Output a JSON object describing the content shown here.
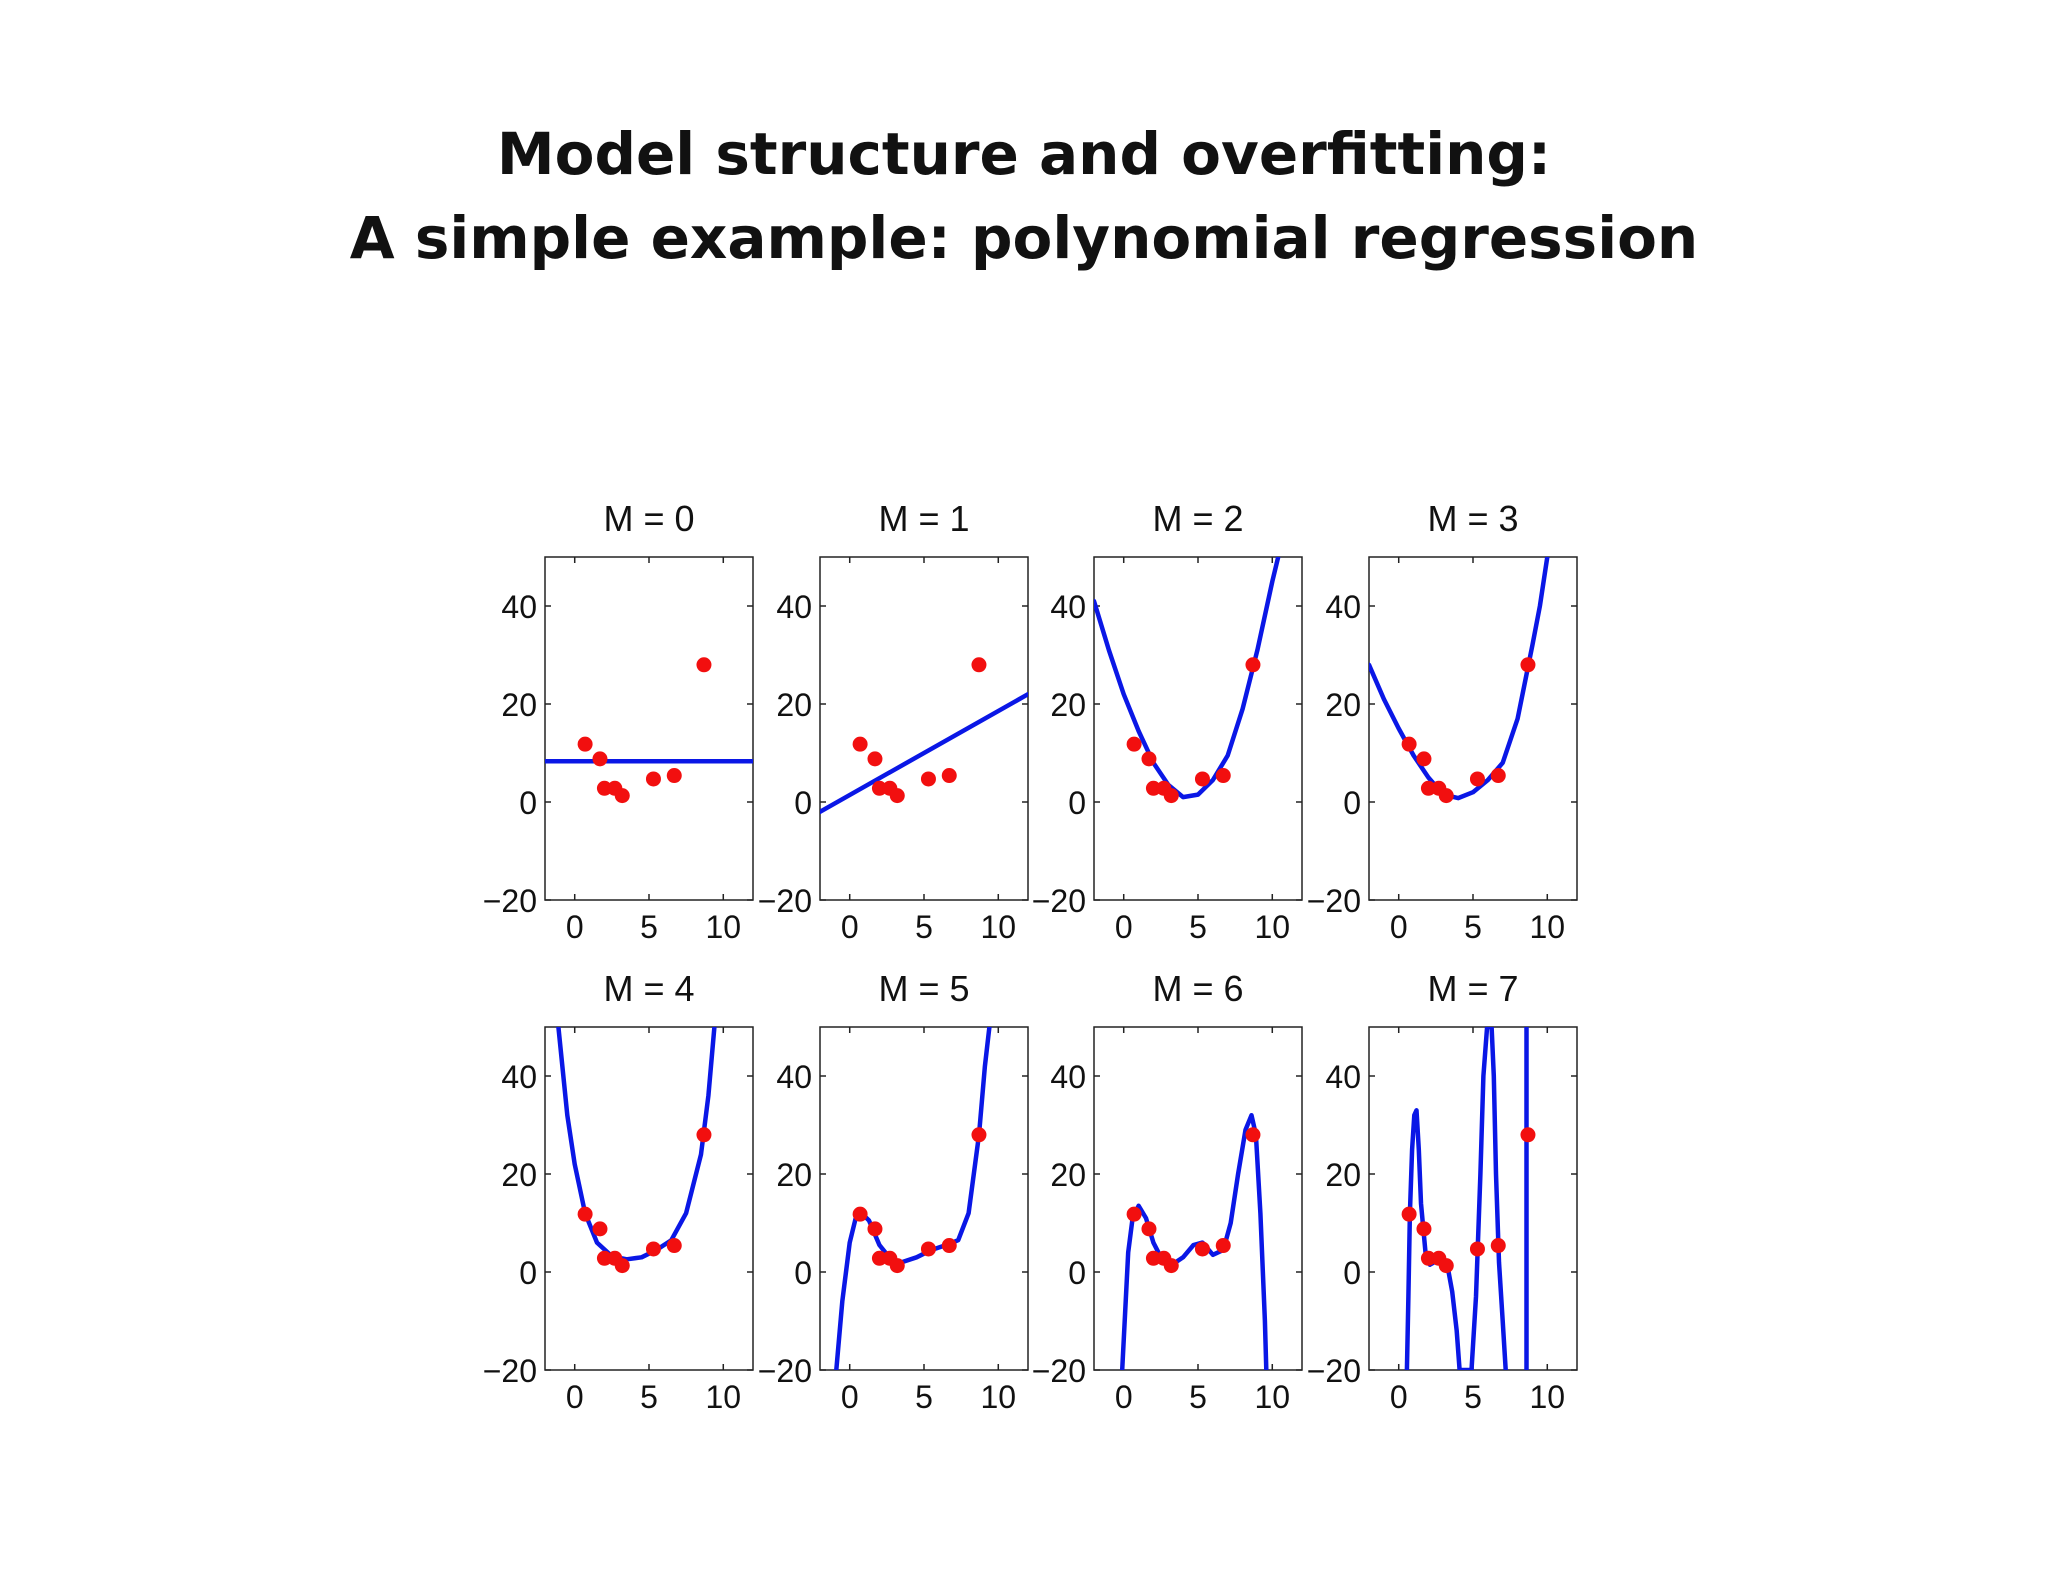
{
  "page": {
    "title_line1": "Model structure and overfitting:",
    "title_line2": "A simple example: polynomial regression"
  },
  "colors": {
    "fit_line": "#0a17e6",
    "data_points": "#f20f0f",
    "axes": "#222222"
  },
  "chart_data": [
    {
      "type": "line",
      "title": "M = 0",
      "xlim": [
        -2,
        12
      ],
      "ylim": [
        -20,
        50
      ],
      "xticks": [
        0,
        5,
        10
      ],
      "yticks": [
        -20,
        0,
        20,
        40
      ],
      "grid": false,
      "curve": {
        "x": [
          -2,
          12
        ],
        "y": [
          8.3,
          8.3
        ]
      },
      "points": {
        "x": [
          0.7,
          1.7,
          2.0,
          2.7,
          3.2,
          5.3,
          6.7,
          8.7
        ],
        "y": [
          11.8,
          8.8,
          2.8,
          2.8,
          1.3,
          4.7,
          5.4,
          28
        ]
      }
    },
    {
      "type": "line",
      "title": "M = 1",
      "xlim": [
        -2,
        12
      ],
      "ylim": [
        -20,
        50
      ],
      "xticks": [
        0,
        5,
        10
      ],
      "yticks": [
        -20,
        0,
        20,
        40
      ],
      "grid": false,
      "curve": {
        "x": [
          -2,
          12
        ],
        "y": [
          -2,
          22
        ]
      },
      "points": {
        "x": [
          0.7,
          1.7,
          2.0,
          2.7,
          3.2,
          5.3,
          6.7,
          8.7
        ],
        "y": [
          11.8,
          8.8,
          2.8,
          2.8,
          1.3,
          4.7,
          5.4,
          28
        ]
      }
    },
    {
      "type": "line",
      "title": "M = 2",
      "xlim": [
        -2,
        12
      ],
      "ylim": [
        -20,
        50
      ],
      "xticks": [
        0,
        5,
        10
      ],
      "yticks": [
        -20,
        0,
        20,
        40
      ],
      "grid": false,
      "curve": {
        "x": [
          -2,
          -1,
          0,
          1,
          2,
          3,
          4,
          5,
          6,
          7,
          8,
          9,
          10,
          10.4
        ],
        "y": [
          41,
          31,
          22,
          14.5,
          8,
          3.5,
          1,
          1.5,
          4.5,
          9.5,
          19,
          31,
          45,
          50
        ]
      },
      "points": {
        "x": [
          0.7,
          1.7,
          2.0,
          2.7,
          3.2,
          5.3,
          6.7,
          8.7
        ],
        "y": [
          11.8,
          8.8,
          2.8,
          2.8,
          1.3,
          4.7,
          5.4,
          28
        ]
      }
    },
    {
      "type": "line",
      "title": "M = 3",
      "xlim": [
        -2,
        12
      ],
      "ylim": [
        -20,
        50
      ],
      "xticks": [
        0,
        5,
        10
      ],
      "yticks": [
        -20,
        0,
        20,
        40
      ],
      "grid": false,
      "curve": {
        "x": [
          -2,
          -1,
          0,
          1,
          2,
          3,
          4,
          5,
          6,
          7,
          8,
          9,
          9.5,
          10
        ],
        "y": [
          28,
          21,
          15,
          9.5,
          5,
          1.5,
          0.8,
          2,
          4.5,
          8,
          17,
          32,
          40,
          50
        ]
      },
      "points": {
        "x": [
          0.7,
          1.7,
          2.0,
          2.7,
          3.2,
          5.3,
          6.7,
          8.7
        ],
        "y": [
          11.8,
          8.8,
          2.8,
          2.8,
          1.3,
          4.7,
          5.4,
          28
        ]
      }
    },
    {
      "type": "line",
      "title": "M = 4",
      "xlim": [
        -2,
        12
      ],
      "ylim": [
        -20,
        50
      ],
      "xticks": [
        0,
        5,
        10
      ],
      "yticks": [
        -20,
        0,
        20,
        40
      ],
      "grid": false,
      "curve": {
        "x": [
          -1.1,
          -0.5,
          0,
          0.7,
          1.5,
          2.5,
          3.5,
          4.5,
          5.5,
          6.5,
          7.5,
          8.5,
          9.0,
          9.4
        ],
        "y": [
          50,
          32,
          22,
          12,
          6,
          3.2,
          2.6,
          3,
          4.5,
          6.5,
          12,
          24,
          36,
          50
        ]
      },
      "points": {
        "x": [
          0.7,
          1.7,
          2.0,
          2.7,
          3.2,
          5.3,
          6.7,
          8.7
        ],
        "y": [
          11.8,
          8.8,
          2.8,
          2.8,
          1.3,
          4.7,
          5.4,
          28
        ]
      }
    },
    {
      "type": "line",
      "title": "M = 5",
      "xlim": [
        -2,
        12
      ],
      "ylim": [
        -20,
        50
      ],
      "xticks": [
        0,
        5,
        10
      ],
      "yticks": [
        -20,
        0,
        20,
        40
      ],
      "grid": false,
      "curve": {
        "x": [
          -0.9,
          -0.5,
          0,
          0.4,
          0.8,
          1.3,
          2.0,
          2.8,
          3.5,
          4.5,
          5.5,
          6.5,
          7.3,
          8.0,
          8.7,
          9.1,
          9.4
        ],
        "y": [
          -20,
          -6,
          6,
          11,
          12,
          10.5,
          5.5,
          2.5,
          2,
          3,
          4.5,
          5.5,
          6.5,
          12,
          28,
          42,
          50
        ]
      },
      "points": {
        "x": [
          0.7,
          1.7,
          2.0,
          2.7,
          3.2,
          5.3,
          6.7,
          8.7
        ],
        "y": [
          11.8,
          8.8,
          2.8,
          2.8,
          1.3,
          4.7,
          5.4,
          28
        ]
      }
    },
    {
      "type": "line",
      "title": "M = 6",
      "xlim": [
        -2,
        12
      ],
      "ylim": [
        -20,
        50
      ],
      "xticks": [
        0,
        5,
        10
      ],
      "yticks": [
        -20,
        0,
        20,
        40
      ],
      "grid": false,
      "curve": {
        "x": [
          -0.1,
          0.1,
          0.3,
          0.6,
          1.0,
          1.5,
          2.0,
          2.5,
          3.0,
          3.5,
          4.0,
          4.7,
          5.3,
          6.0,
          6.7,
          7.2,
          7.7,
          8.2,
          8.6,
          8.9,
          9.2,
          9.5,
          9.6
        ],
        "y": [
          -20,
          -8,
          4,
          11,
          13.5,
          11,
          6,
          3,
          2,
          2,
          3,
          5.5,
          6,
          3.5,
          4.5,
          10,
          20,
          29,
          32,
          28,
          12,
          -10,
          -20
        ]
      },
      "points": {
        "x": [
          0.7,
          1.7,
          2.0,
          2.7,
          3.2,
          5.3,
          6.7,
          8.7
        ],
        "y": [
          11.8,
          8.8,
          2.8,
          2.8,
          1.3,
          4.7,
          5.4,
          28
        ]
      }
    },
    {
      "type": "line",
      "title": "M = 7",
      "xlim": [
        -2,
        12
      ],
      "ylim": [
        -20,
        50
      ],
      "xticks": [
        0,
        5,
        10
      ],
      "yticks": [
        -20,
        0,
        20,
        40
      ],
      "grid": false,
      "curve": {
        "x": [
          0.55,
          0.65,
          0.75,
          0.9,
          1.05,
          1.2,
          1.35,
          1.5,
          1.8,
          2.1,
          2.4,
          2.7,
          3.0,
          3.3,
          3.6,
          3.9,
          4.1,
          4.4,
          4.9,
          5.2,
          5.5,
          5.7,
          5.95,
          6.1,
          6.25,
          6.4,
          6.55,
          6.75,
          7.0,
          7.2
        ],
        "y": [
          -20,
          -5,
          12,
          25,
          32,
          33,
          25,
          14,
          4,
          1.5,
          2,
          3,
          2.5,
          1,
          -4,
          -12,
          -20,
          -20,
          -20,
          -5,
          20,
          40,
          50,
          50,
          50,
          40,
          20,
          2,
          -10,
          -20
        ]
      },
      "curve2": {
        "x": [
          8.6,
          8.6
        ],
        "y": [
          -20,
          50
        ]
      },
      "points": {
        "x": [
          0.7,
          1.7,
          2.0,
          2.7,
          3.2,
          5.3,
          6.7,
          8.7
        ],
        "y": [
          11.8,
          8.8,
          2.8,
          2.8,
          1.3,
          4.7,
          5.4,
          28
        ]
      }
    }
  ]
}
